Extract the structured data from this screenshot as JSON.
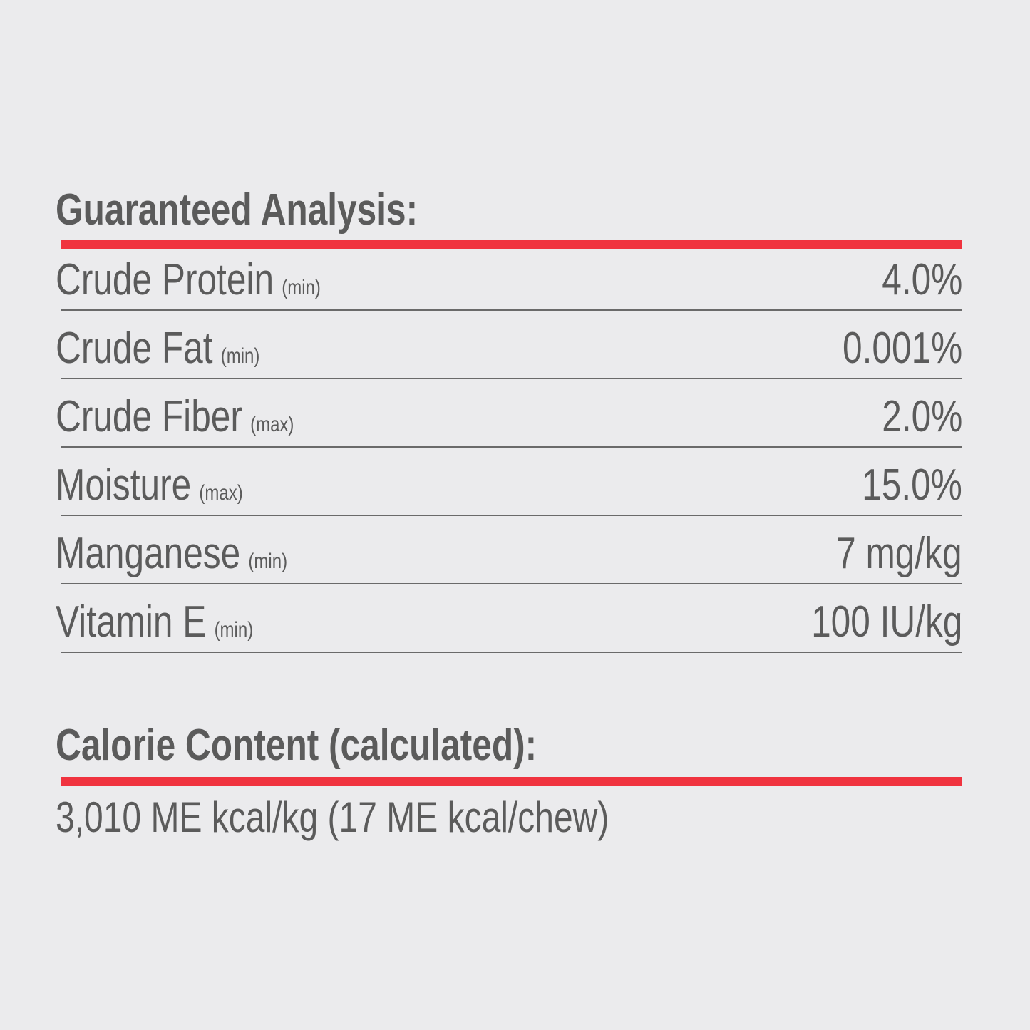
{
  "guaranteed_analysis": {
    "title": "Guaranteed Analysis:",
    "rows": [
      {
        "name": "Crude Protein",
        "qualifier": "(min)",
        "value": "4.0%"
      },
      {
        "name": "Crude Fat",
        "qualifier": "(min)",
        "value": "0.001%"
      },
      {
        "name": "Crude Fiber",
        "qualifier": "(max)",
        "value": "2.0%"
      },
      {
        "name": "Moisture",
        "qualifier": "(max)",
        "value": "15.0%"
      },
      {
        "name": "Manganese",
        "qualifier": "(min)",
        "value": "7 mg/kg"
      },
      {
        "name": "Vitamin E",
        "qualifier": "(min)",
        "value": "100 IU/kg"
      }
    ]
  },
  "calorie_content": {
    "title": "Calorie Content (calculated):",
    "value": "3,010 ME kcal/kg (17 ME kcal/chew)"
  },
  "colors": {
    "accent": "#f0333f",
    "text": "#5b5b5b",
    "background": "#ebebed"
  }
}
